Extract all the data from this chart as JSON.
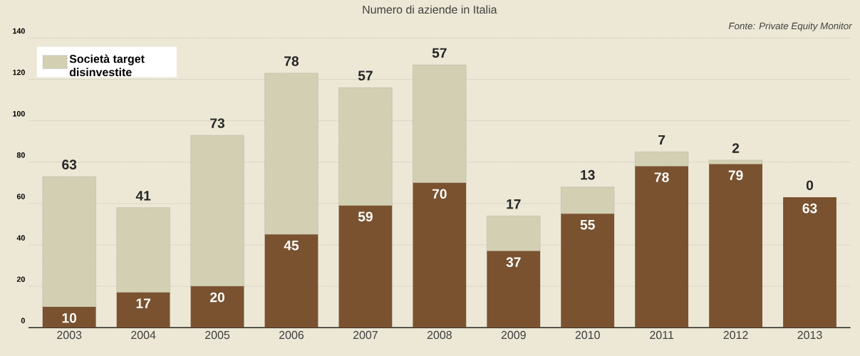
{
  "chart_data": {
    "type": "bar",
    "stacked": true,
    "title": "Numero di aziende in Italia",
    "annotations": [
      "Fonte: Private Equity Monitor"
    ],
    "categories": [
      "2003",
      "2004",
      "2005",
      "2006",
      "2007",
      "2008",
      "2009",
      "2010",
      "2011",
      "2012",
      "2013"
    ],
    "series": [
      {
        "color": "#7a5230",
        "values": [
          10,
          17,
          20,
          45,
          59,
          70,
          37,
          55,
          78,
          79,
          63
        ]
      },
      {
        "name": "Società target disinvestite",
        "color": "#d3cfb3",
        "values": [
          63,
          41,
          73,
          78,
          57,
          57,
          17,
          13,
          7,
          2,
          0
        ]
      }
    ],
    "ylim": [
      0,
      140
    ],
    "yticks": [
      0,
      20,
      40,
      60,
      80,
      100,
      120,
      140
    ],
    "grid": "y",
    "legend": "top left",
    "data_labels": true
  }
}
